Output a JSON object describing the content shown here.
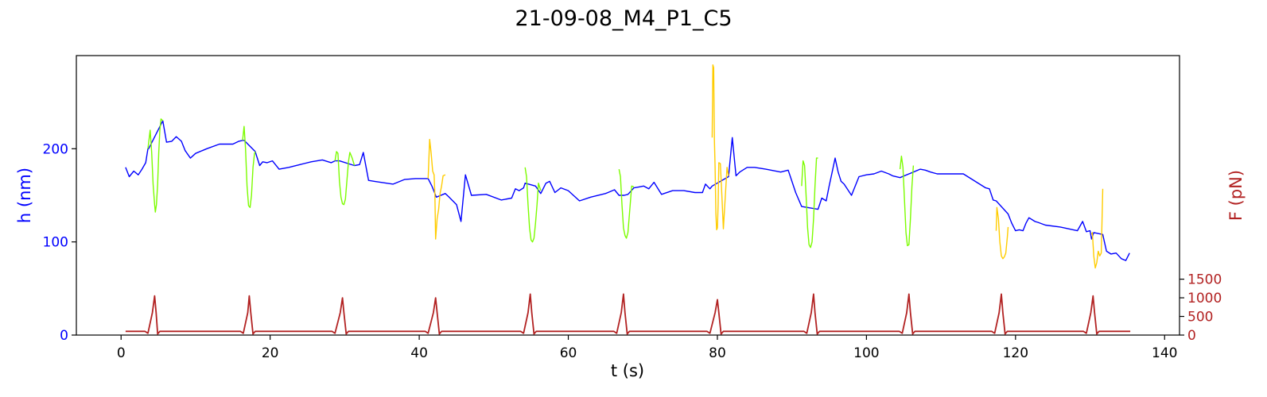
{
  "chart_data": {
    "type": "line",
    "title": "21-09-08_M4_P1_C5",
    "xlabel": "t (s)",
    "ylabel": "h (nm)",
    "ylabel_right": "F (pN)",
    "xlim": [
      -6,
      142
    ],
    "ylim": [
      0,
      300
    ],
    "ylim_right": [
      0,
      7500
    ],
    "x_ticks": [
      0,
      20,
      40,
      60,
      80,
      100,
      120,
      140
    ],
    "y_ticks": [
      0,
      100,
      200
    ],
    "y_ticks_right": [
      0,
      500,
      1000,
      1500
    ],
    "grid": false,
    "legend": "none",
    "colors": {
      "h": "#0000ff",
      "h_axis": "#0000ff",
      "f": "#b22222",
      "f_axis": "#b22222",
      "cycle_green": "#7cfc00",
      "cycle_gold": "#ffcc00"
    },
    "series": [
      {
        "id": "height",
        "axis": "left",
        "color": "#0000ff",
        "x": [
          0.6,
          1.1,
          1.7,
          2.3,
          2.8,
          3.3,
          3.6,
          3.7,
          5.6,
          6.1,
          6.8,
          7.4,
          8.1,
          8.6,
          9.3,
          10.0,
          11.5,
          13.2,
          15.0,
          15.8,
          16.3,
          16.5,
          18.0,
          18.6,
          19.0,
          19.6,
          20.3,
          21.2,
          22.5,
          24.0,
          25.5,
          27.0,
          28.2,
          28.7,
          29.3,
          31.3,
          32.0,
          32.5,
          33.2,
          34.0,
          36.5,
          38.0,
          39.5,
          40.3,
          40.8,
          41.2,
          41.7,
          42.3,
          43.5,
          44.0,
          44.5,
          45.0,
          45.6,
          46.2,
          47.0,
          49.0,
          51.0,
          52.4,
          52.9,
          53.4,
          54.0,
          54.2,
          55.6,
          56.3,
          57.0,
          57.5,
          58.2,
          59.0,
          60.0,
          61.5,
          63.0,
          65.0,
          66.2,
          66.8,
          67.5,
          68.0,
          68.8,
          69.5,
          70.1,
          70.8,
          71.5,
          72.5,
          74.0,
          75.5,
          77.0,
          78.0,
          78.4,
          79.0,
          79.3,
          81.5,
          82.0,
          82.5,
          83.0,
          84.0,
          85.0,
          86.5,
          88.5,
          89.5,
          90.0,
          90.5,
          91.3,
          93.5,
          94.0,
          94.6,
          95.0,
          95.4,
          95.8,
          96.2,
          96.6,
          97.0,
          98.0,
          99.0,
          100.0,
          101.0,
          102.0,
          103.0,
          103.5,
          104.5,
          106.3,
          107.2,
          107.9,
          108.6,
          109.5,
          113.0,
          116.0,
          116.5,
          117.0,
          117.4,
          119.0,
          119.5,
          120.0,
          120.5,
          121.0,
          121.4,
          121.8,
          122.2,
          122.6,
          123.0,
          124.0,
          126.0,
          128.3,
          129.0,
          129.5,
          130.0,
          130.2,
          130.5,
          131.7,
          132.2,
          132.8,
          133.5,
          134.2,
          134.8,
          135.3
        ],
        "values": [
          180,
          170,
          176,
          172,
          178,
          185,
          200,
          200,
          230,
          207,
          208,
          213,
          208,
          198,
          190,
          195,
          200,
          205,
          205,
          208,
          209,
          209,
          197,
          182,
          186,
          185,
          187,
          178,
          180,
          183,
          186,
          188,
          185,
          187,
          187,
          182,
          183,
          196,
          166,
          165,
          162,
          167,
          168,
          168,
          168,
          168,
          160,
          148,
          152,
          148,
          144,
          140,
          122,
          172,
          150,
          151,
          145,
          147,
          157,
          155,
          158,
          163,
          160,
          152,
          163,
          165,
          153,
          158,
          155,
          144,
          148,
          152,
          156,
          150,
          150,
          151,
          158,
          159,
          160,
          157,
          164,
          151,
          155,
          155,
          153,
          153,
          162,
          157,
          160,
          170,
          212,
          171,
          175,
          180,
          180,
          178,
          175,
          177,
          165,
          153,
          138,
          135,
          147,
          144,
          160,
          175,
          190,
          175,
          165,
          162,
          150,
          170,
          172,
          173,
          176,
          173,
          171,
          169,
          175,
          178,
          177,
          175,
          173,
          173,
          158,
          157,
          145,
          144,
          130,
          120,
          112,
          113,
          112,
          120,
          126,
          124,
          122,
          121,
          118,
          116,
          112,
          122,
          111,
          112,
          103,
          110,
          108,
          90,
          87,
          88,
          82,
          80,
          88
        ]
      },
      {
        "id": "force",
        "axis": "right",
        "color": "#b22222",
        "x": [
          0.6,
          3.2,
          3.6,
          4.2,
          4.5,
          4.7,
          4.9,
          5.2,
          5.5,
          16.0,
          16.4,
          17.0,
          17.2,
          17.4,
          17.7,
          18.0,
          28.3,
          28.7,
          29.4,
          29.7,
          29.9,
          30.2,
          30.5,
          40.8,
          41.2,
          41.9,
          42.2,
          42.4,
          42.7,
          43.0,
          53.6,
          54.0,
          54.6,
          54.9,
          55.1,
          55.4,
          55.7,
          66.1,
          66.5,
          67.1,
          67.4,
          67.6,
          67.9,
          68.2,
          78.6,
          79.0,
          79.7,
          80.0,
          80.2,
          80.5,
          80.8,
          91.6,
          92.0,
          92.6,
          92.9,
          93.1,
          93.4,
          93.7,
          104.4,
          104.8,
          105.4,
          105.7,
          105.9,
          106.2,
          106.5,
          116.8,
          117.2,
          117.8,
          118.1,
          118.3,
          118.6,
          118.9,
          129.1,
          129.5,
          130.1,
          130.4,
          130.6,
          130.9,
          131.2,
          135.4
        ],
        "values": [
          100,
          100,
          50,
          600,
          1050,
          600,
          30,
          100,
          100,
          100,
          50,
          600,
          1050,
          600,
          30,
          100,
          100,
          50,
          600,
          1000,
          600,
          30,
          100,
          100,
          50,
          600,
          1000,
          600,
          30,
          100,
          100,
          50,
          600,
          1100,
          600,
          30,
          100,
          100,
          50,
          600,
          1100,
          600,
          30,
          100,
          100,
          50,
          600,
          950,
          600,
          30,
          100,
          100,
          50,
          600,
          1100,
          600,
          30,
          100,
          100,
          50,
          600,
          1100,
          600,
          30,
          100,
          100,
          50,
          600,
          1100,
          600,
          30,
          100,
          100,
          50,
          600,
          1050,
          600,
          30,
          100,
          100
        ]
      },
      {
        "id": "cycle-1",
        "axis": "left",
        "color": "#7cfc00",
        "x": [
          3.6,
          3.75,
          3.9,
          4.1,
          4.3,
          4.5,
          4.6,
          4.75,
          4.9,
          5.05,
          5.2,
          5.35,
          5.6
        ],
        "values": [
          200,
          210,
          220,
          196,
          162,
          140,
          132,
          140,
          162,
          196,
          220,
          232,
          230
        ]
      },
      {
        "id": "cycle-2",
        "axis": "left",
        "color": "#7cfc00",
        "x": [
          16.3,
          16.5,
          16.7,
          16.9,
          17.1,
          17.3,
          17.5,
          17.7,
          17.9,
          18.0
        ],
        "values": [
          209,
          224,
          200,
          160,
          139,
          137,
          150,
          180,
          195,
          197
        ]
      },
      {
        "id": "cycle-3",
        "axis": "left",
        "color": "#7cfc00",
        "x": [
          28.7,
          28.9,
          29.1,
          29.3,
          29.5,
          29.7,
          29.9,
          30.1,
          30.3,
          30.5,
          30.7,
          31.0,
          31.3
        ],
        "values": [
          187,
          197,
          195,
          165,
          148,
          141,
          140,
          146,
          166,
          186,
          196,
          190,
          182
        ]
      },
      {
        "id": "cycle-4",
        "axis": "left",
        "color": "#ffcc00",
        "x": [
          41.2,
          41.4,
          41.6,
          41.8,
          42.0,
          42.1,
          42.2,
          42.4,
          42.6,
          42.8,
          43.0,
          43.2,
          43.5
        ],
        "values": [
          168,
          210,
          195,
          176,
          172,
          150,
          103,
          125,
          135,
          152,
          160,
          171,
          172
        ]
      },
      {
        "id": "cycle-5",
        "axis": "left",
        "color": "#7cfc00",
        "x": [
          54.2,
          54.4,
          54.6,
          54.8,
          55.0,
          55.2,
          55.4,
          55.6,
          55.8,
          56.0,
          56.3
        ],
        "values": [
          180,
          170,
          140,
          115,
          102,
          100,
          104,
          120,
          140,
          163,
          155
        ]
      },
      {
        "id": "cycle-6",
        "axis": "left",
        "color": "#7cfc00",
        "x": [
          66.8,
          67.0,
          67.2,
          67.4,
          67.6,
          67.8,
          68.0,
          68.2,
          68.5,
          68.8
        ],
        "values": [
          178,
          170,
          140,
          115,
          107,
          104,
          110,
          130,
          160,
          159
        ]
      },
      {
        "id": "cycle-7",
        "axis": "left",
        "color": "#ffcc00",
        "x": [
          79.3,
          79.4,
          79.5,
          79.6,
          79.7,
          79.8,
          79.9,
          80.0,
          80.1,
          80.2,
          80.4,
          80.6,
          80.8,
          81.0,
          81.3,
          81.5
        ],
        "values": [
          212,
          290,
          287,
          210,
          180,
          130,
          113,
          115,
          140,
          185,
          184,
          150,
          114,
          140,
          180,
          171
        ]
      },
      {
        "id": "cycle-8",
        "axis": "left",
        "color": "#7cfc00",
        "x": [
          91.3,
          91.5,
          91.7,
          91.9,
          92.1,
          92.3,
          92.5,
          92.7,
          92.9,
          93.1,
          93.3,
          93.5
        ],
        "values": [
          160,
          187,
          182,
          150,
          115,
          97,
          94,
          100,
          125,
          160,
          190,
          190
        ]
      },
      {
        "id": "cycle-9",
        "axis": "left",
        "color": "#7cfc00",
        "x": [
          104.5,
          104.7,
          104.9,
          105.1,
          105.3,
          105.5,
          105.7,
          105.9,
          106.1,
          106.3
        ],
        "values": [
          178,
          192,
          180,
          145,
          110,
          96,
          97,
          125,
          160,
          182
        ]
      },
      {
        "id": "cycle-10",
        "axis": "left",
        "color": "#ffcc00",
        "x": [
          117.4,
          117.5,
          117.7,
          117.9,
          118.1,
          118.3,
          118.5,
          118.7,
          118.9,
          119.0
        ],
        "values": [
          112,
          137,
          125,
          100,
          85,
          82,
          84,
          88,
          105,
          116
        ]
      },
      {
        "id": "cycle-11",
        "axis": "left",
        "color": "#ffcc00",
        "x": [
          130.2,
          130.3,
          130.5,
          130.7,
          130.9,
          131.1,
          131.3,
          131.5,
          131.6,
          131.7
        ],
        "values": [
          108,
          110,
          85,
          72,
          78,
          90,
          85,
          88,
          120,
          157
        ]
      }
    ]
  }
}
